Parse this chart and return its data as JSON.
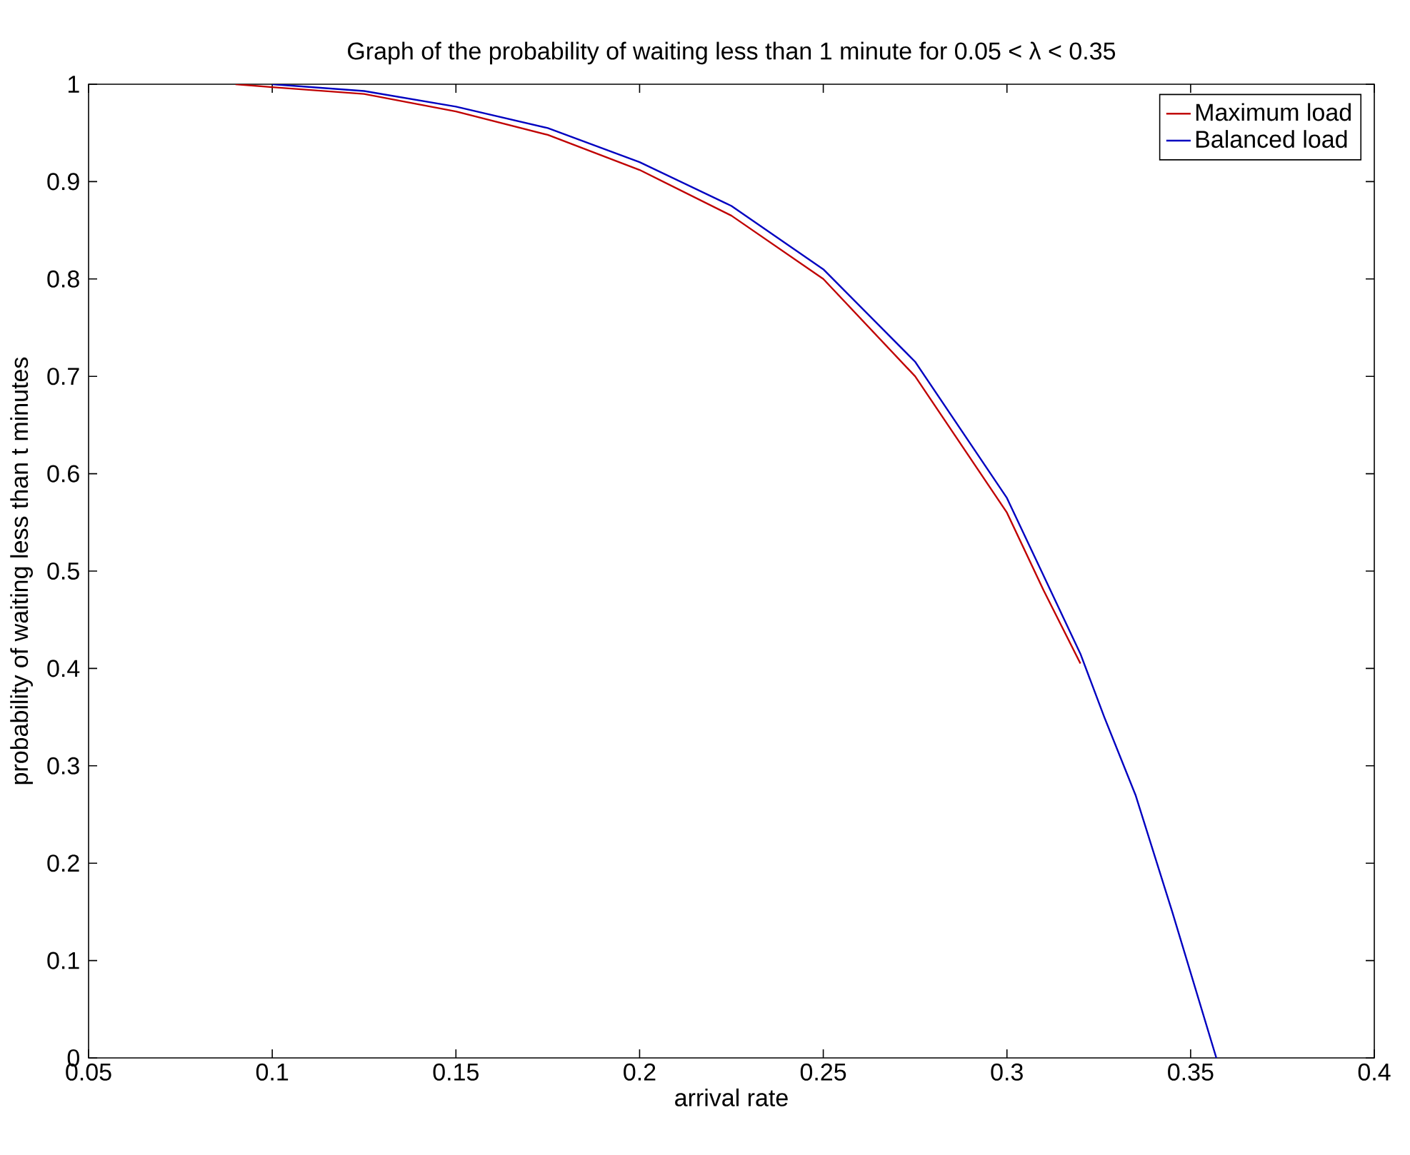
{
  "chart_data": {
    "type": "line",
    "title": "Graph of the probability of waiting less than 1 minute for 0.05 < λ < 0.35",
    "xlabel": "arrival rate",
    "ylabel": "probability of waiting less than t minutes",
    "xlim": [
      0.05,
      0.4
    ],
    "ylim": [
      0,
      1
    ],
    "xticks": [
      0.05,
      0.1,
      0.15,
      0.2,
      0.25,
      0.3,
      0.35,
      0.4
    ],
    "yticks": [
      0,
      0.1,
      0.2,
      0.3,
      0.4,
      0.5,
      0.6,
      0.7,
      0.8,
      0.9,
      1
    ],
    "grid": false,
    "legend": "top right",
    "line_style": "solid",
    "marker": "none",
    "series": [
      {
        "name": "Maximum load",
        "color": "#c00000",
        "x": [
          0.09,
          0.1,
          0.125,
          0.15,
          0.175,
          0.2,
          0.225,
          0.25,
          0.275,
          0.3,
          0.31,
          0.32
        ],
        "values": [
          1.0,
          0.997,
          0.99,
          0.972,
          0.948,
          0.912,
          0.865,
          0.8,
          0.7,
          0.56,
          0.48,
          0.405
        ]
      },
      {
        "name": "Balanced load",
        "color": "#0000c0",
        "x": [
          0.1,
          0.125,
          0.15,
          0.175,
          0.2,
          0.225,
          0.25,
          0.275,
          0.3,
          0.31,
          0.32,
          0.3265,
          0.335,
          0.345,
          0.357
        ],
        "values": [
          1.0,
          0.993,
          0.977,
          0.955,
          0.92,
          0.875,
          0.81,
          0.715,
          0.575,
          0.495,
          0.415,
          0.35,
          0.27,
          0.15,
          0
        ]
      }
    ]
  }
}
